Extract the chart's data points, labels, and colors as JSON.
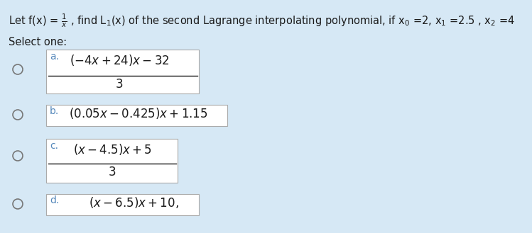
{
  "background_color": "#d6e8f5",
  "box_color": "#ffffff",
  "text_color": "#1a1a1a",
  "label_color": "#5588bb",
  "circle_color": "#777777",
  "title": "Let f(x) = $\\frac{1}{x}$ , find L$_1$(x) of the second Lagrange interpolating polynomial, if x$_0$ =2, x$_1$ =2.5 , x$_2$ =4",
  "select_one": "Select one:",
  "opt_a_num": "(-4x + 24)x − 32",
  "opt_a_den": "3",
  "opt_b": "(0.05x − 0.425)x + 1.15",
  "opt_c_num": "(x − 4.5)x + 5",
  "opt_c_den": "3",
  "opt_d": "(x − 6.5)x + 10,",
  "title_fontsize": 10.5,
  "option_fontsize": 12,
  "label_fontsize": 10,
  "select_fontsize": 10.5
}
